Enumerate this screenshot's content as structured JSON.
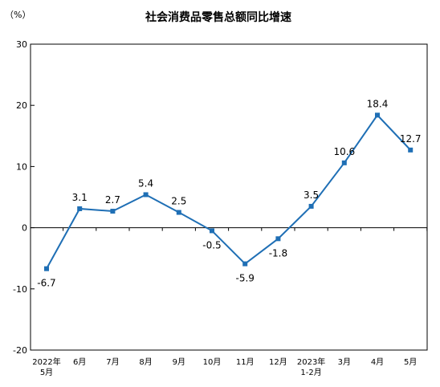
{
  "chart_data": {
    "type": "line",
    "title": "社会消费品零售总额同比增速",
    "unit": "（%）",
    "ylim": [
      -20,
      30
    ],
    "yticks": [
      -20,
      -10,
      0,
      10,
      20,
      30
    ],
    "grid": false,
    "categories": [
      [
        "2022年",
        "5月"
      ],
      [
        "6月"
      ],
      [
        "7月"
      ],
      [
        "8月"
      ],
      [
        "9月"
      ],
      [
        "10月"
      ],
      [
        "11月"
      ],
      [
        "12月"
      ],
      [
        "2023年",
        "1-2月"
      ],
      [
        "3月"
      ],
      [
        "4月"
      ],
      [
        "5月"
      ]
    ],
    "values": [
      -6.7,
      3.1,
      2.7,
      5.4,
      2.5,
      -0.5,
      -5.9,
      -1.8,
      3.5,
      10.6,
      18.4,
      12.7
    ],
    "line_color": "#1f6fb5",
    "marker": "square"
  }
}
